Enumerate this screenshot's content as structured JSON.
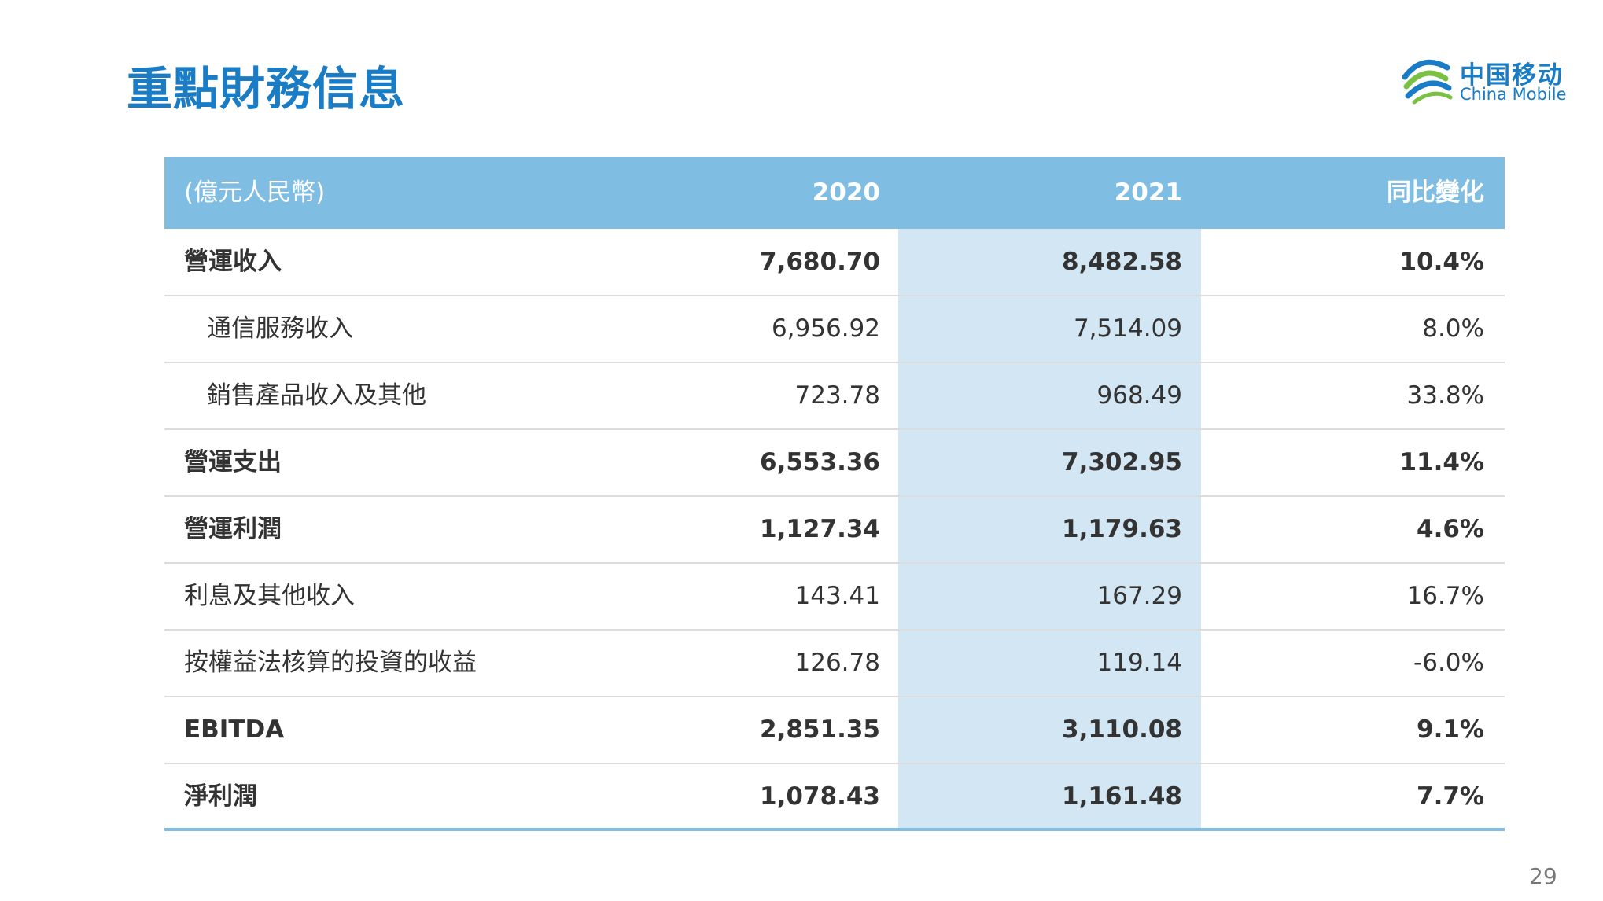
{
  "header": {
    "title": "重點財務信息",
    "logo_cn": "中国移动",
    "logo_en": "China Mobile"
  },
  "table": {
    "columns": [
      "(億元人民幣)",
      "2020",
      "2021",
      "同比變化"
    ],
    "rows": [
      [
        "營運收入",
        "7,680.70",
        "8,482.58",
        "10.4%"
      ],
      [
        "通信服務收入",
        "6,956.92",
        "7,514.09",
        "8.0%"
      ],
      [
        "銷售產品收入及其他",
        "723.78",
        "968.49",
        "33.8%"
      ],
      [
        "營運支出",
        "6,553.36",
        "7,302.95",
        "11.4%"
      ],
      [
        "營運利潤",
        "1,127.34",
        "1,179.63",
        "4.6%"
      ],
      [
        "利息及其他收入",
        "143.41",
        "167.29",
        "16.7%"
      ],
      [
        "按權益法核算的投資的收益",
        "126.78",
        "119.14",
        "-6.0%"
      ],
      [
        "EBITDA",
        "2,851.35",
        "3,110.08",
        "9.1%"
      ],
      [
        "淨利潤",
        "1,078.43",
        "1,161.48",
        "7.7%"
      ]
    ]
  },
  "page_number": "29"
}
